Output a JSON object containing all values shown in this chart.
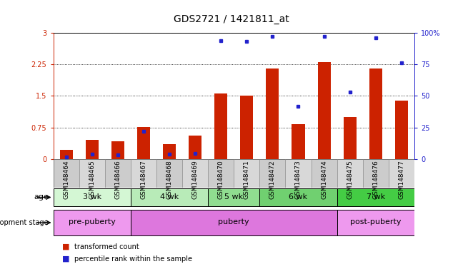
{
  "title": "GDS2721 / 1421811_at",
  "samples": [
    "GSM148464",
    "GSM148465",
    "GSM148466",
    "GSM148467",
    "GSM148468",
    "GSM148469",
    "GSM148470",
    "GSM148471",
    "GSM148472",
    "GSM148473",
    "GSM148474",
    "GSM148475",
    "GSM148476",
    "GSM148477"
  ],
  "red_values": [
    0.22,
    0.45,
    0.42,
    0.76,
    0.35,
    0.55,
    1.55,
    1.5,
    2.15,
    0.82,
    2.3,
    1.0,
    2.15,
    1.38
  ],
  "blue_percentile": [
    1.5,
    4.0,
    3.5,
    22,
    4.0,
    4.5,
    94,
    93,
    97,
    42,
    97,
    53,
    96,
    76
  ],
  "ylim_left": [
    0,
    3
  ],
  "ylim_right": [
    0,
    100
  ],
  "yticks_left": [
    0,
    0.75,
    1.5,
    2.25,
    3
  ],
  "yticks_right": [
    0,
    25,
    50,
    75,
    100
  ],
  "ytick_labels_left": [
    "0",
    "0.75",
    "1.5",
    "2.25",
    "3"
  ],
  "ytick_labels_right": [
    "0",
    "25",
    "50",
    "75",
    "100%"
  ],
  "bar_color": "#cc2200",
  "dot_color": "#2222cc",
  "age_groups": [
    {
      "label": "3 wk",
      "start": 0,
      "end": 2,
      "color": "#d4f7d4"
    },
    {
      "label": "4 wk",
      "start": 3,
      "end": 5,
      "color": "#b8ebb8"
    },
    {
      "label": "5 wk",
      "start": 6,
      "end": 7,
      "color": "#90dd90"
    },
    {
      "label": "6 wk",
      "start": 8,
      "end": 10,
      "color": "#70d070"
    },
    {
      "label": "7 wk",
      "start": 11,
      "end": 13,
      "color": "#44cc44"
    }
  ],
  "dev_groups": [
    {
      "label": "pre-puberty",
      "start": 0,
      "end": 2,
      "color": "#ee99ee"
    },
    {
      "label": "puberty",
      "start": 3,
      "end": 10,
      "color": "#dd77dd"
    },
    {
      "label": "post-puberty",
      "start": 11,
      "end": 13,
      "color": "#ee99ee"
    }
  ],
  "legend_red": "transformed count",
  "legend_blue": "percentile rank within the sample",
  "title_fontsize": 10,
  "tick_fontsize": 7,
  "label_fontsize": 8,
  "annot_fontsize": 8
}
